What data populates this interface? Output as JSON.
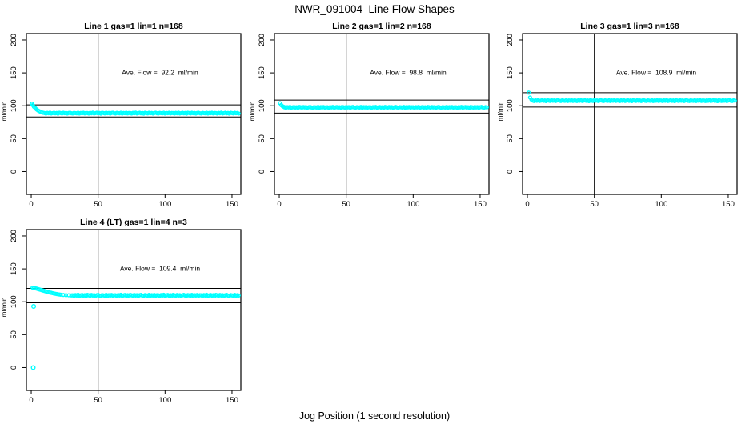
{
  "main_title": "NWR_091004  Line Flow Shapes",
  "x_axis_label": "Jog Position (1 second resolution)",
  "point_color": "#00FFFF",
  "line_color": "#000000",
  "jitter_pattern": [
    0.1,
    -0.6,
    0.4,
    -0.2,
    0.7,
    -0.5,
    0.0,
    0.5,
    -0.3,
    0.2,
    -0.7,
    0.6,
    0.1,
    -0.4,
    0.5,
    -0.1,
    0.3,
    -0.6,
    0.2,
    0.6,
    -0.2,
    -0.5,
    0.4,
    0.0,
    -0.3,
    0.6,
    -0.6,
    0.3,
    -0.1,
    0.5,
    -0.4,
    0.2
  ],
  "chart_data": [
    {
      "type": "scatter",
      "title": "Line 1 gas=1 lin=1 n=168",
      "annotation": "Ave. Flow =  92.2  ml/min",
      "ave_flow_ml_min": 92.2,
      "ylabel": "ml/min",
      "xticks": [
        0,
        50,
        100,
        150
      ],
      "yticks": [
        0,
        50,
        100,
        150,
        200
      ],
      "xlim": [
        -3.6,
        156.6
      ],
      "ylim": [
        -34.7,
        209.7
      ],
      "ref_vline_x": 50,
      "ref_hlines": [
        101.4,
        83.0
      ],
      "points_transient": [
        [
          0.5,
          103
        ],
        [
          1.2,
          101
        ],
        [
          2,
          98.5
        ],
        [
          3,
          96.5
        ],
        [
          4,
          94.5
        ],
        [
          5,
          93
        ],
        [
          6,
          91.8
        ],
        [
          7,
          90.8
        ],
        [
          8,
          89.9
        ],
        [
          9,
          89.3
        ]
      ],
      "steady": {
        "x_from": 10,
        "x_to": 155,
        "x_step": 1,
        "value": 88.8,
        "jitter": 1.0
      },
      "outliers": []
    },
    {
      "type": "scatter",
      "title": "Line 2 gas=1 lin=2 n=168",
      "annotation": "Ave. Flow =  98.8  ml/min",
      "ave_flow_ml_min": 98.8,
      "ylabel": "ml/min",
      "xticks": [
        0,
        50,
        100,
        150
      ],
      "yticks": [
        0,
        50,
        100,
        150,
        200
      ],
      "xlim": [
        -3.6,
        156.6
      ],
      "ylim": [
        -34.7,
        209.7
      ],
      "ref_vline_x": 50,
      "ref_hlines": [
        108.7,
        88.9
      ],
      "points_transient": [
        [
          0.5,
          104
        ],
        [
          1.5,
          101
        ],
        [
          2.5,
          99.3
        ],
        [
          3.5,
          98.3
        ]
      ],
      "steady": {
        "x_from": 4,
        "x_to": 155,
        "x_step": 1,
        "value": 97.6,
        "jitter": 0.85
      },
      "outliers": []
    },
    {
      "type": "scatter",
      "title": "Line 3 gas=1 lin=3 n=168",
      "annotation": "Ave. Flow =  108.9  ml/min",
      "ave_flow_ml_min": 108.9,
      "ylabel": "ml/min",
      "xticks": [
        0,
        50,
        100,
        150
      ],
      "yticks": [
        0,
        50,
        100,
        150,
        200
      ],
      "xlim": [
        -3.6,
        156.6
      ],
      "ylim": [
        -34.7,
        209.7
      ],
      "ref_vline_x": 50,
      "ref_hlines": [
        119.8,
        98.0
      ],
      "points_transient": [
        [
          1,
          120
        ],
        [
          2,
          112.5
        ],
        [
          3,
          109.5
        ]
      ],
      "steady": {
        "x_from": 4,
        "x_to": 155,
        "x_step": 1,
        "value": 107.8,
        "jitter": 1.0
      },
      "outliers": []
    },
    {
      "type": "scatter",
      "title": "Line 4 (LT) gas=1 lin=4 n=3",
      "annotation": "Ave. Flow =  109.4  ml/min",
      "ave_flow_ml_min": 109.4,
      "ylabel": "ml/min",
      "xticks": [
        0,
        50,
        100,
        150
      ],
      "yticks": [
        0,
        50,
        100,
        150,
        200
      ],
      "xlim": [
        -3.6,
        156.6
      ],
      "ylim": [
        -34.7,
        209.7
      ],
      "ref_vline_x": 50,
      "ref_hlines": [
        120.3,
        98.5
      ],
      "points_transient": [
        [
          1,
          121.5
        ],
        [
          2,
          121
        ],
        [
          3,
          120.5
        ],
        [
          4,
          120
        ],
        [
          5,
          119.4
        ],
        [
          6,
          118.8
        ],
        [
          7,
          118.2
        ],
        [
          8,
          117.6
        ],
        [
          9,
          117
        ],
        [
          10,
          116.4
        ],
        [
          11,
          115.8
        ],
        [
          12,
          115.2
        ],
        [
          13,
          114.6
        ],
        [
          14,
          114.1
        ],
        [
          15,
          113.6
        ],
        [
          16,
          113.1
        ],
        [
          17,
          112.6
        ],
        [
          18,
          112.2
        ],
        [
          19,
          111.8
        ],
        [
          20,
          111.4
        ],
        [
          21,
          111.1
        ],
        [
          22,
          110.8
        ],
        [
          24,
          110.4
        ],
        [
          26,
          110.1
        ],
        [
          28,
          109.9
        ],
        [
          30,
          109.7
        ]
      ],
      "steady": {
        "x_from": 31,
        "x_to": 155,
        "x_step": 1,
        "value": 109.7,
        "jitter": 1.3
      },
      "outliers": [
        [
          1.5,
          0
        ],
        [
          1.8,
          93
        ]
      ]
    }
  ]
}
